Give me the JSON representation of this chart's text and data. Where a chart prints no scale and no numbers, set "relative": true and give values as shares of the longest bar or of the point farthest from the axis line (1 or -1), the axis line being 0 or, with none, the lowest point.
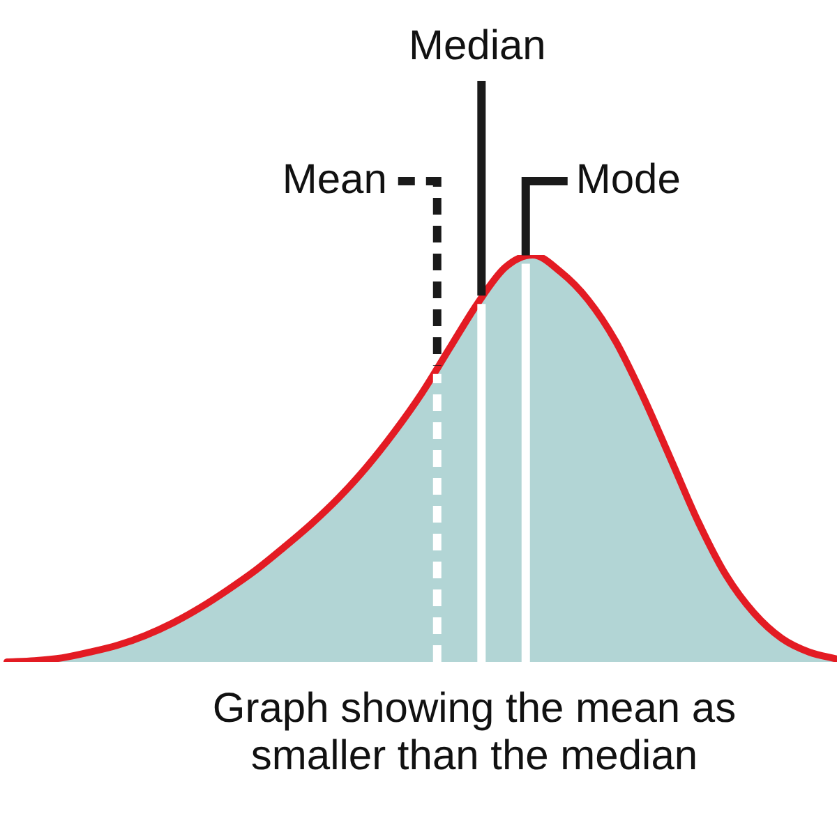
{
  "chart_data": {
    "type": "area",
    "relative": true,
    "categories": [
      null,
      null,
      null,
      null,
      null,
      null,
      null,
      null,
      null,
      null,
      null,
      null,
      null,
      null,
      null,
      null,
      null,
      null,
      null,
      null,
      null,
      null,
      null,
      null,
      null,
      null,
      null,
      null,
      null,
      null,
      null
    ],
    "series": [
      {
        "color": "#e31b23",
        "values": [
          0,
          0.003,
          0.01,
          0.024,
          0.041,
          0.065,
          0.096,
          0.134,
          0.178,
          0.226,
          0.281,
          0.339,
          0.404,
          0.479,
          0.565,
          0.661,
          0.771,
          0.88,
          0.969,
          1,
          0.959,
          0.89,
          0.788,
          0.651,
          0.497,
          0.342,
          0.212,
          0.12,
          0.058,
          0.024,
          0.007
        ]
      }
    ],
    "annotations": [
      "Mean",
      "Median",
      "Mode",
      "Graph showing the mean as smaller than the median"
    ]
  }
}
